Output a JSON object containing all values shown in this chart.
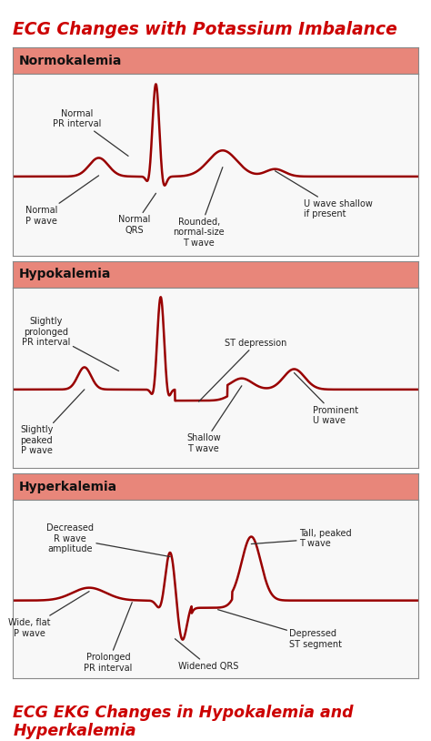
{
  "title": "ECG Changes with Potassium Imbalance",
  "footer": "ECG EKG Changes in Hypokalemia and\nHyperkalemia",
  "title_color": "#CC0000",
  "footer_color": "#CC0000",
  "bg_color": "#FFFFFF",
  "panel_bg": "#E8867A",
  "ecg_color": "#990000",
  "panel_border_color": "#888888",
  "annotation_color": "#222222",
  "sections": [
    "Normokalemia",
    "Hypokalemia",
    "Hyperkalemia"
  ]
}
